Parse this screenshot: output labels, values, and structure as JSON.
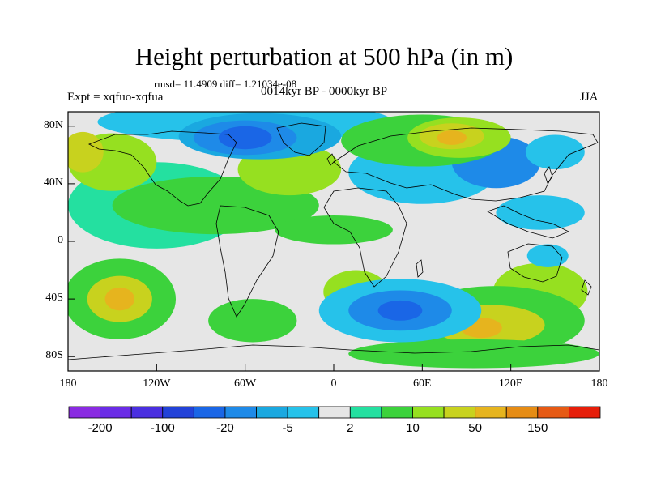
{
  "title": "Height perturbation at 500 hPa (in m)",
  "stats": "rmsd= 11.4909 diff= 1.21034e-08",
  "expt": "Expt = xqfuo-xqfua",
  "period": "0014kyr BP - 0000kyr BP",
  "season": "JJA",
  "axes": {
    "y_ticks": [
      {
        "label": "80N",
        "lat": 80
      },
      {
        "label": "40N",
        "lat": 40
      },
      {
        "label": "0",
        "lat": 0
      },
      {
        "label": "40S",
        "lat": -40
      },
      {
        "label": "80S",
        "lat": -80
      }
    ],
    "x_ticks": [
      {
        "label": "180",
        "lon": -180
      },
      {
        "label": "120W",
        "lon": -120
      },
      {
        "label": "60W",
        "lon": -60
      },
      {
        "label": "0",
        "lon": 0
      },
      {
        "label": "60E",
        "lon": 60
      },
      {
        "label": "120E",
        "lon": 120
      },
      {
        "label": "180",
        "lon": 180
      }
    ],
    "lat_range": [
      -90,
      90
    ],
    "lon_range": [
      -180,
      180
    ]
  },
  "colorbar": {
    "colors": [
      "#8a2be2",
      "#6a2ce6",
      "#4a2fe0",
      "#2242d8",
      "#1a66e6",
      "#1e8ae8",
      "#1aa8e0",
      "#26c2ea",
      "#e6e6e6",
      "#24e0a0",
      "#3cd23c",
      "#96e020",
      "#c8d21e",
      "#e6b41e",
      "#e68c14",
      "#e65a14",
      "#e61e0a"
    ],
    "labels": [
      {
        "text": "-200",
        "boundary": 1
      },
      {
        "text": "-100",
        "boundary": 3
      },
      {
        "text": "-20",
        "boundary": 5
      },
      {
        "text": "-5",
        "boundary": 7
      },
      {
        "text": "2",
        "boundary": 9
      },
      {
        "text": "10",
        "boundary": 11
      },
      {
        "text": "50",
        "boundary": 13
      },
      {
        "text": "150",
        "boundary": 15
      }
    ]
  },
  "field": {
    "background_level": 8,
    "blobs": [
      {
        "lon": -120,
        "lat": 25,
        "rx": 60,
        "ry": 30,
        "level": 9
      },
      {
        "lon": -80,
        "lat": 25,
        "rx": 70,
        "ry": 20,
        "level": 10
      },
      {
        "lon": -30,
        "lat": 50,
        "rx": 35,
        "ry": 18,
        "level": 11
      },
      {
        "lon": -150,
        "lat": 55,
        "rx": 30,
        "ry": 20,
        "level": 11
      },
      {
        "lon": -170,
        "lat": 62,
        "rx": 14,
        "ry": 14,
        "level": 12
      },
      {
        "lon": 60,
        "lat": 48,
        "rx": 50,
        "ry": 22,
        "level": 7
      },
      {
        "lon": 110,
        "lat": 55,
        "rx": 30,
        "ry": 18,
        "level": 5
      },
      {
        "lon": 140,
        "lat": 20,
        "rx": 30,
        "ry": 12,
        "level": 7
      },
      {
        "lon": 0,
        "lat": 8,
        "rx": 40,
        "ry": 10,
        "level": 10
      },
      {
        "lon": -145,
        "lat": -40,
        "rx": 38,
        "ry": 28,
        "level": 10
      },
      {
        "lon": -145,
        "lat": -40,
        "rx": 22,
        "ry": 16,
        "level": 12
      },
      {
        "lon": -145,
        "lat": -40,
        "rx": 10,
        "ry": 8,
        "level": 13
      },
      {
        "lon": -55,
        "lat": -55,
        "rx": 30,
        "ry": 15,
        "level": 10
      },
      {
        "lon": 15,
        "lat": -35,
        "rx": 22,
        "ry": 15,
        "level": 11
      },
      {
        "lon": 140,
        "lat": -35,
        "rx": 32,
        "ry": 20,
        "level": 11
      },
      {
        "lon": 110,
        "lat": -55,
        "rx": 60,
        "ry": 24,
        "level": 10
      },
      {
        "lon": 105,
        "lat": -58,
        "rx": 38,
        "ry": 14,
        "level": 12
      },
      {
        "lon": 100,
        "lat": -60,
        "rx": 14,
        "ry": 7,
        "level": 13
      },
      {
        "lon": 95,
        "lat": -78,
        "rx": 85,
        "ry": 10,
        "level": 10
      },
      {
        "lon": 45,
        "lat": -48,
        "rx": 55,
        "ry": 22,
        "level": 7
      },
      {
        "lon": 45,
        "lat": -48,
        "rx": 35,
        "ry": 14,
        "level": 5
      },
      {
        "lon": 45,
        "lat": -48,
        "rx": 15,
        "ry": 7,
        "level": 4
      },
      {
        "lon": -60,
        "lat": 83,
        "rx": 100,
        "ry": 14,
        "level": 7
      },
      {
        "lon": -50,
        "lat": 73,
        "rx": 55,
        "ry": 16,
        "level": 6
      },
      {
        "lon": -60,
        "lat": 72,
        "rx": 35,
        "ry": 12,
        "level": 5
      },
      {
        "lon": -60,
        "lat": 72,
        "rx": 18,
        "ry": 8,
        "level": 4
      },
      {
        "lon": 60,
        "lat": 70,
        "rx": 55,
        "ry": 18,
        "level": 10
      },
      {
        "lon": 85,
        "lat": 72,
        "rx": 35,
        "ry": 14,
        "level": 11
      },
      {
        "lon": 80,
        "lat": 73,
        "rx": 22,
        "ry": 9,
        "level": 12
      },
      {
        "lon": 80,
        "lat": 72,
        "rx": 10,
        "ry": 5,
        "level": 13
      },
      {
        "lon": 150,
        "lat": 62,
        "rx": 20,
        "ry": 12,
        "level": 7
      },
      {
        "lon": 145,
        "lat": -10,
        "rx": 14,
        "ry": 8,
        "level": 7
      }
    ]
  }
}
